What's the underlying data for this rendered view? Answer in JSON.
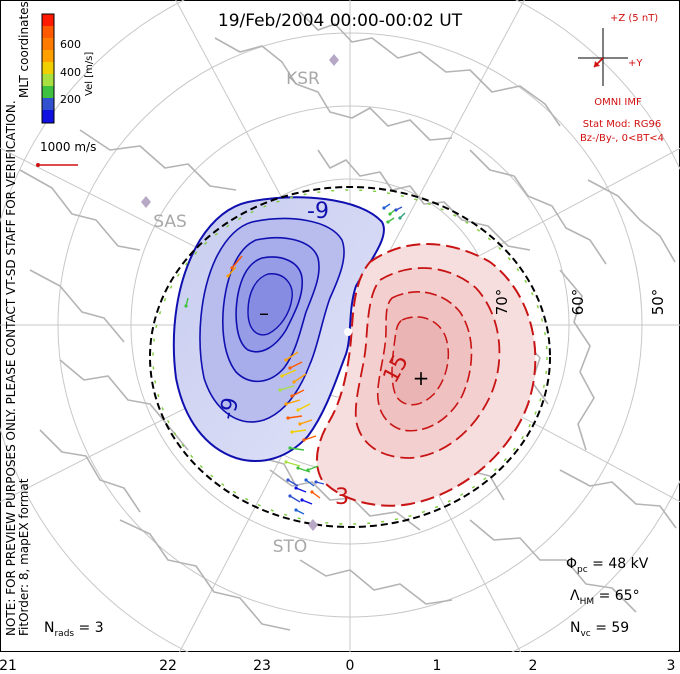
{
  "title": "19/Feb/2004 00:00-00:02 UT",
  "side_note": {
    "line1": "NOTE: FOR PREVIEW PURPOSES ONLY. PLEASE CONTACT VT-SD STAFF FOR VERIFICATION.",
    "line2": "FitOrder: 8, mapEX format"
  },
  "coordinate_label": "MLT coordinates",
  "color_bar": {
    "title": "Vel [m/s]",
    "ticks": [
      "600",
      "400",
      "200"
    ],
    "colors": [
      "#ff1a00",
      "#ff5a00",
      "#ffa000",
      "#f0d000",
      "#a8e040",
      "#40c040",
      "#30a080",
      "#3050d0",
      "#1010e0"
    ]
  },
  "vector_scale": {
    "label": "1000 m/s"
  },
  "imf": {
    "bz_label": "+Z (5 nT)",
    "by_label": "+Y",
    "source": "OMNI IMF",
    "model": "Stat Mod: RG96",
    "condition": "Bz-/By-, 0<BT<4"
  },
  "stations": [
    "KSR",
    "SAS",
    "STO"
  ],
  "latitude_labels": [
    "70°",
    "60°",
    "50°"
  ],
  "contour_labels": [
    "-9",
    "-9",
    "15",
    "3"
  ],
  "min_marker": "–",
  "max_marker": "+",
  "stats": {
    "phi_symbol": "Φ",
    "phi_sub": "pc",
    "phi_value": " = 48 kV",
    "lambda_symbol": "Λ",
    "lambda_sub": "HM",
    "lambda_value": " = 65°",
    "nvc_symbol": "N",
    "nvc_sub": "vc",
    "nvc_value": " = 59",
    "nrads_symbol": "N",
    "nrads_sub": "rads",
    "nrads_value": " = 3"
  },
  "mlt_axis": [
    "21",
    "22",
    "23",
    "0",
    "1",
    "2",
    "3"
  ]
}
